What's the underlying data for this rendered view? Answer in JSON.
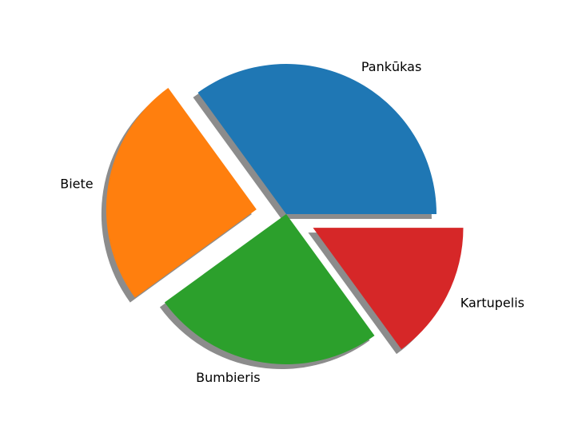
{
  "chart_data": {
    "type": "pie",
    "title": "",
    "shadow": true,
    "start_angle_deg": 0,
    "direction": "counterclockwise",
    "slices": [
      {
        "label": "Pankūkas",
        "value": 35,
        "explode": 0.0,
        "color": "#1f77b4"
      },
      {
        "label": "Biete",
        "value": 25,
        "explode": 0.2,
        "color": "#ff7f0e"
      },
      {
        "label": "Bumbieris",
        "value": 25,
        "explode": 0.0,
        "color": "#2ca02c"
      },
      {
        "label": "Kartupelis",
        "value": 15,
        "explode": 0.2,
        "color": "#d62728"
      }
    ]
  }
}
